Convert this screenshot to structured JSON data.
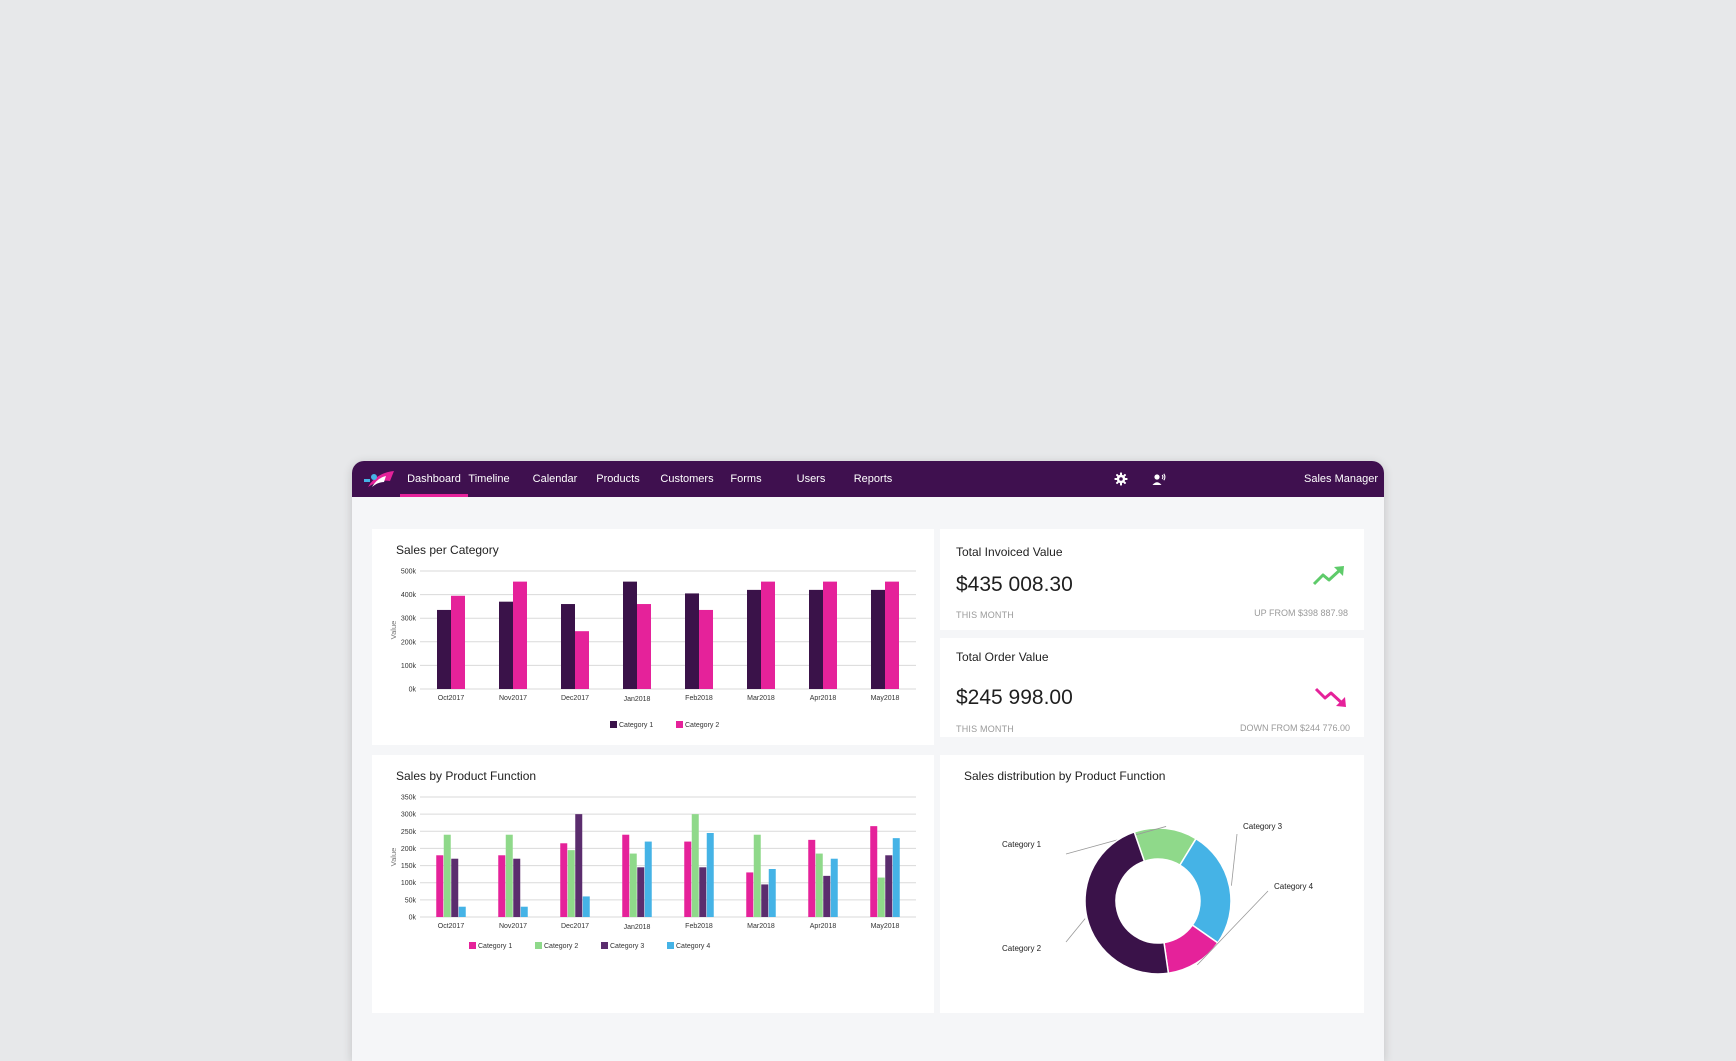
{
  "nav": {
    "items": [
      "Dashboard",
      "Timeline",
      "Calendar",
      "Products",
      "Customers",
      "Forms",
      "Users",
      "Reports"
    ],
    "active": "Dashboard",
    "user_label": "Sales Manager",
    "settings_icon": "gear-icon",
    "voice_icon": "person-voice-icon"
  },
  "colors": {
    "topbar": "#3f104f",
    "accent": "#e5229a",
    "category1": "#3a1249",
    "category2": "#e5229a",
    "pf_category1": "#e5229a",
    "pf_category2": "#8fd98a",
    "pf_category3": "#5b2d6e",
    "pf_category4": "#45b3e6",
    "trend_up": "#5ecb6a",
    "trend_down": "#e5229a"
  },
  "kpis": {
    "invoiced": {
      "title": "Total Invoiced Value",
      "value": "$435 008.30",
      "caption": "THIS MONTH",
      "change": "UP FROM $398 887.98",
      "trend_icon": "trend-up-icon"
    },
    "order": {
      "title": "Total Order Value",
      "value": "$245 998.00",
      "caption": "THIS MONTH",
      "change": "DOWN FROM $244 776.00",
      "trend_icon": "trend-down-icon"
    }
  },
  "chart_data": [
    {
      "type": "bar",
      "title": "Sales per Category",
      "xlabel": "",
      "ylabel": "Value",
      "ylim": [
        0,
        500000
      ],
      "yticks": [
        "0k",
        "100k",
        "200k",
        "300k",
        "400k",
        "500k"
      ],
      "categories": [
        "Oct2017",
        "Nov2017",
        "Dec2017",
        "Jan2018",
        "Feb2018",
        "Mar2018",
        "Apr2018",
        "May2018"
      ],
      "series": [
        {
          "name": "Category 1",
          "values": [
            335000,
            370000,
            360000,
            455000,
            405000,
            420000,
            420000,
            420000
          ]
        },
        {
          "name": "Category 2",
          "values": [
            395000,
            455000,
            245000,
            360000,
            335000,
            455000,
            455000,
            455000
          ]
        }
      ],
      "legend": "bottom-center",
      "grid": true
    },
    {
      "type": "bar",
      "title": "Sales by Product Function",
      "xlabel": "",
      "ylabel": "Value",
      "ylim": [
        0,
        350000
      ],
      "yticks": [
        "0k",
        "50k",
        "100k",
        "150k",
        "200k",
        "250k",
        "300k",
        "350k"
      ],
      "categories": [
        "Oct2017",
        "Nov2017",
        "Dec2017",
        "Jan2018",
        "Feb2018",
        "Mar2018",
        "Apr2018",
        "May2018"
      ],
      "series": [
        {
          "name": "Category 1",
          "values": [
            180000,
            180000,
            215000,
            240000,
            220000,
            130000,
            225000,
            265000
          ]
        },
        {
          "name": "Category 2",
          "values": [
            240000,
            240000,
            195000,
            185000,
            300000,
            240000,
            185000,
            115000
          ]
        },
        {
          "name": "Category 3",
          "values": [
            170000,
            170000,
            300000,
            145000,
            145000,
            95000,
            120000,
            180000
          ]
        },
        {
          "name": "Category 4",
          "values": [
            30000,
            30000,
            60000,
            220000,
            245000,
            140000,
            170000,
            230000
          ]
        }
      ],
      "legend": "bottom-center",
      "grid": true
    },
    {
      "type": "pie",
      "title": "Sales distribution by Product Function",
      "labels": [
        "Category 1",
        "Category 2",
        "Category 3",
        "Category 4"
      ],
      "values": [
        14,
        47,
        26,
        13
      ],
      "donut": true,
      "legend": "callout-labels"
    }
  ]
}
